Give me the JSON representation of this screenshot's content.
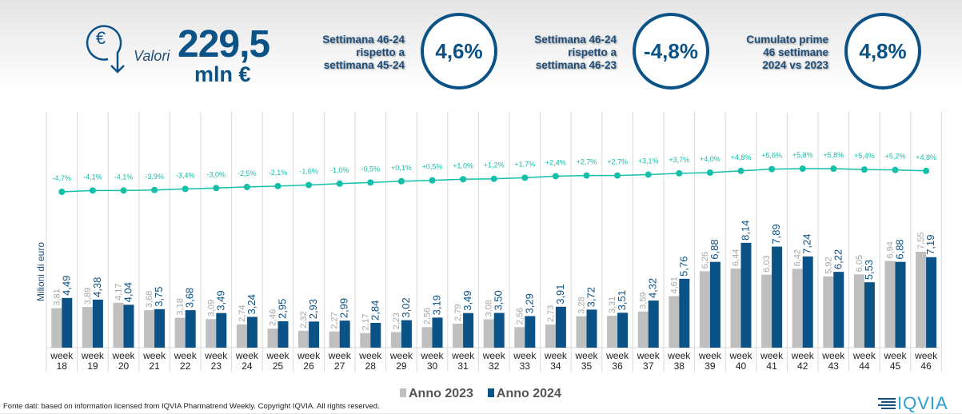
{
  "header": {
    "valori_label": "Valori",
    "total_value": "229,5",
    "total_unit": "mln €",
    "kpis": [
      {
        "label_lines": [
          "Settimana 46-24",
          "rispetto a",
          "settimana 45-24"
        ],
        "value": "4,6%"
      },
      {
        "label_lines": [
          "Settimana 46-24",
          "rispetto a",
          "settimana 46-23"
        ],
        "value": "-4,8%"
      },
      {
        "label_lines": [
          "Cumulato prime",
          "46 settimane",
          "2024 vs 2023"
        ],
        "value": "4,8%"
      }
    ]
  },
  "footer": {
    "source": "Fonte dati: based on information licensed from IQVIA Pharmatrend Weekly. Copyright IQVIA. All rights reserved.",
    "logo": "IQVIA"
  },
  "colors": {
    "y2023": "#bfbfbf",
    "y2024": "#0b5286",
    "line": "#12bfa8"
  },
  "chart_data": {
    "type": "bar",
    "ylabel": "Milioni di euro",
    "ylim": [
      1.2,
      9
    ],
    "categories": [
      "18",
      "19",
      "20",
      "21",
      "22",
      "23",
      "24",
      "25",
      "26",
      "27",
      "28",
      "29",
      "30",
      "31",
      "32",
      "33",
      "34",
      "35",
      "36",
      "37",
      "38",
      "39",
      "40",
      "41",
      "42",
      "43",
      "44",
      "45",
      "46"
    ],
    "category_prefix": "week",
    "series": [
      {
        "name": "Anno 2023",
        "values": [
          3.81,
          3.89,
          4.17,
          3.68,
          3.18,
          3.09,
          2.74,
          2.46,
          2.32,
          2.27,
          2.17,
          2.23,
          2.56,
          2.79,
          3.08,
          2.56,
          2.73,
          3.28,
          3.31,
          3.59,
          4.61,
          6.26,
          6.44,
          6.03,
          6.42,
          5.92,
          6.05,
          6.94,
          7.55
        ]
      },
      {
        "name": "Anno 2024",
        "values": [
          4.49,
          4.38,
          4.04,
          3.75,
          3.68,
          3.49,
          3.24,
          2.95,
          2.93,
          2.99,
          2.84,
          3.02,
          3.19,
          3.49,
          3.5,
          3.29,
          3.91,
          3.72,
          3.51,
          4.32,
          5.76,
          6.88,
          8.14,
          7.89,
          7.24,
          6.22,
          5.53,
          6.88,
          7.19
        ]
      }
    ],
    "cumulative_growth_pct": [
      -4.7,
      -4.1,
      -4.1,
      -3.9,
      -3.4,
      -3.0,
      -2.5,
      -2.1,
      -1.6,
      -1.0,
      -0.5,
      0.1,
      0.5,
      1.0,
      1.2,
      1.7,
      2.4,
      2.7,
      2.7,
      3.1,
      3.7,
      4.0,
      4.8,
      5.6,
      5.8,
      5.8,
      5.4,
      5.2,
      4.8
    ]
  }
}
